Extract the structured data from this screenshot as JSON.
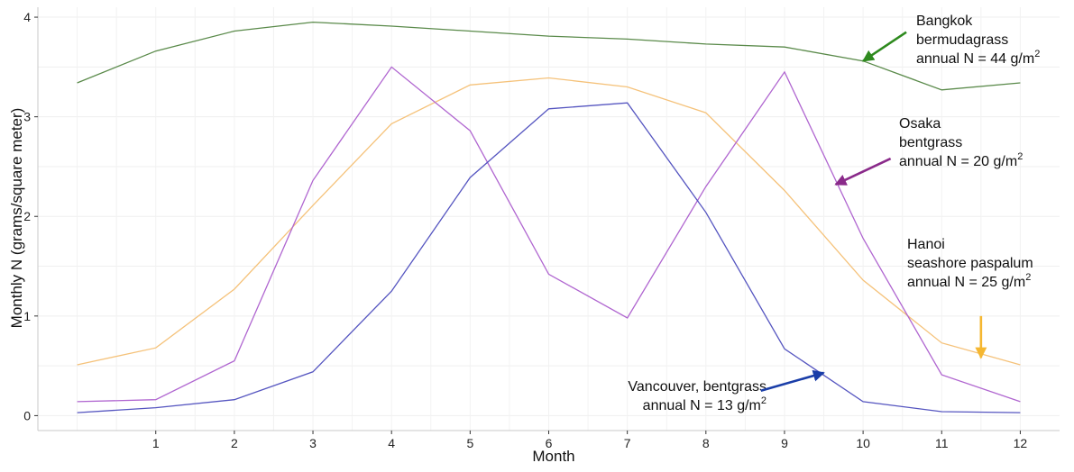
{
  "chart_data": {
    "type": "line",
    "xlabel": "Month",
    "ylabel": "Monthly N (grams/square meter)",
    "xlim": [
      -0.5,
      12.5
    ],
    "ylim": [
      -0.15,
      4.1
    ],
    "x_ticks": [
      "1",
      "2",
      "3",
      "4",
      "5",
      "6",
      "7",
      "8",
      "9",
      "10",
      "11",
      "12"
    ],
    "y_ticks": [
      "0",
      "1",
      "2",
      "3",
      "4"
    ],
    "grid": true,
    "x": [
      0,
      1,
      2,
      3,
      4,
      5,
      6,
      7,
      8,
      9,
      10,
      11,
      12
    ],
    "series": [
      {
        "key": "bangkok",
        "color": "#5a8a4a",
        "values": [
          3.34,
          3.66,
          3.86,
          3.95,
          3.91,
          3.86,
          3.81,
          3.78,
          3.73,
          3.7,
          3.56,
          3.27,
          3.34
        ]
      },
      {
        "key": "hanoi",
        "color": "#f5c27a",
        "values": [
          0.51,
          0.68,
          1.27,
          2.11,
          2.93,
          3.32,
          3.39,
          3.3,
          3.04,
          2.26,
          1.36,
          0.73,
          0.51
        ]
      },
      {
        "key": "osaka",
        "color": "#b066d0",
        "values": [
          0.14,
          0.16,
          0.55,
          2.36,
          3.5,
          2.86,
          1.42,
          0.98,
          2.3,
          3.45,
          1.78,
          0.41,
          0.14
        ]
      },
      {
        "key": "vancouver",
        "color": "#5555c0",
        "values": [
          0.03,
          0.08,
          0.16,
          0.44,
          1.25,
          2.39,
          3.08,
          3.14,
          2.04,
          0.67,
          0.14,
          0.04,
          0.03
        ]
      }
    ],
    "annotations": [
      {
        "key": "bangkok",
        "lines": [
          "Bangkok",
          "bermudagrass",
          "annual N = 44 g/m"
        ],
        "superscript": "2",
        "arrow_color": "#2e8a1e",
        "arrow_from": [
          10.55,
          3.85
        ],
        "arrow_to": [
          10.0,
          3.56
        ]
      },
      {
        "key": "osaka",
        "lines": [
          "Osaka",
          "bentgrass",
          "annual N = 20 g/m"
        ],
        "superscript": "2",
        "arrow_color": "#8a2a8a",
        "arrow_from": [
          10.35,
          2.58
        ],
        "arrow_to": [
          9.65,
          2.32
        ]
      },
      {
        "key": "hanoi",
        "lines": [
          "Hanoi",
          "seashore paspalum",
          "annual N = 25 g/m"
        ],
        "superscript": "2",
        "arrow_color": "#f5b731",
        "arrow_from": [
          11.5,
          1.0
        ],
        "arrow_to": [
          11.5,
          0.58
        ]
      },
      {
        "key": "vancouver",
        "lines": [
          "Vancouver, bentgrass",
          "annual N = 13 g/m"
        ],
        "superscript": "2",
        "arrow_color": "#1a3ea8",
        "arrow_from": [
          8.7,
          0.25
        ],
        "arrow_to": [
          9.5,
          0.43
        ]
      }
    ]
  }
}
